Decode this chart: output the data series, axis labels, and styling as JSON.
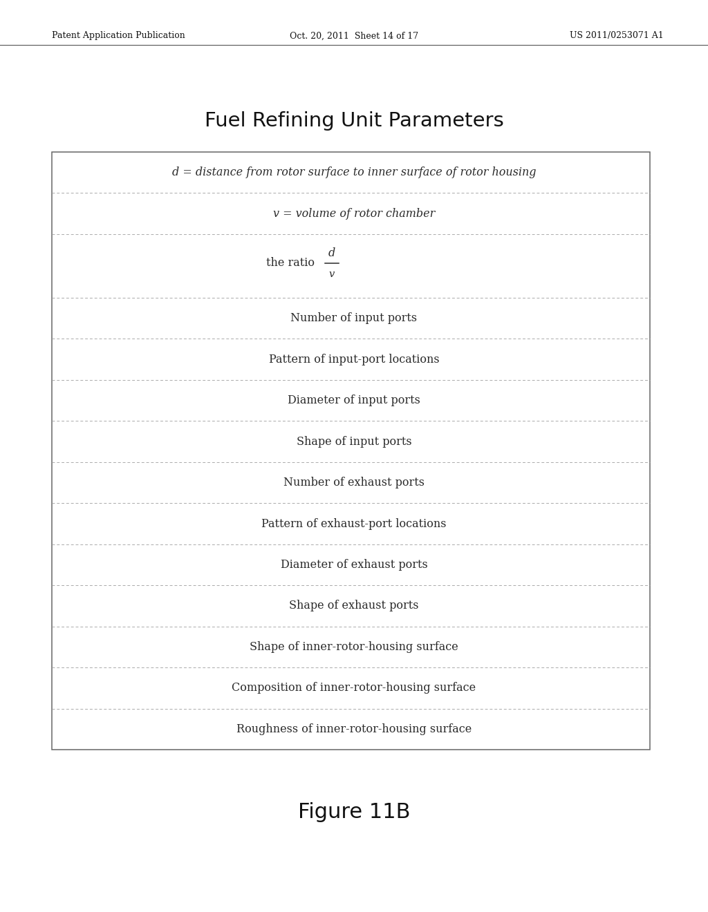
{
  "title": "Fuel Refining Unit Parameters",
  "figure_label": "Figure 11B",
  "header_left": "Patent Application Publication",
  "header_mid": "Oct. 20, 2011  Sheet 14 of 17",
  "header_right": "US 2011/0253071 A1",
  "rows": [
    {
      "type": "d_text",
      "content": "d = distance from rotor surface to inner surface of rotor housing"
    },
    {
      "type": "v_text",
      "content": "v = volume of rotor chamber"
    },
    {
      "type": "ratio",
      "content": "the ratio"
    },
    {
      "type": "text",
      "content": "Number of input ports"
    },
    {
      "type": "text",
      "content": "Pattern of input-port locations"
    },
    {
      "type": "text",
      "content": "Diameter of input ports"
    },
    {
      "type": "text",
      "content": "Shape of input ports"
    },
    {
      "type": "text",
      "content": "Number of exhaust ports"
    },
    {
      "type": "text",
      "content": "Pattern of exhaust-port locations"
    },
    {
      "type": "text",
      "content": "Diameter of exhaust ports"
    },
    {
      "type": "text",
      "content": "Shape of exhaust ports"
    },
    {
      "type": "text",
      "content": "Shape of inner-rotor-housing surface"
    },
    {
      "type": "text",
      "content": "Composition of inner-rotor-housing surface"
    },
    {
      "type": "text",
      "content": "Roughness of inner-rotor-housing surface"
    }
  ],
  "bg_color": "#ffffff",
  "text_color": "#2a2a2a",
  "border_color": "#666666",
  "line_color": "#aaaaaa",
  "title_fontsize": 21,
  "header_fontsize": 9,
  "row_fontsize": 11.5,
  "figure_label_fontsize": 22
}
